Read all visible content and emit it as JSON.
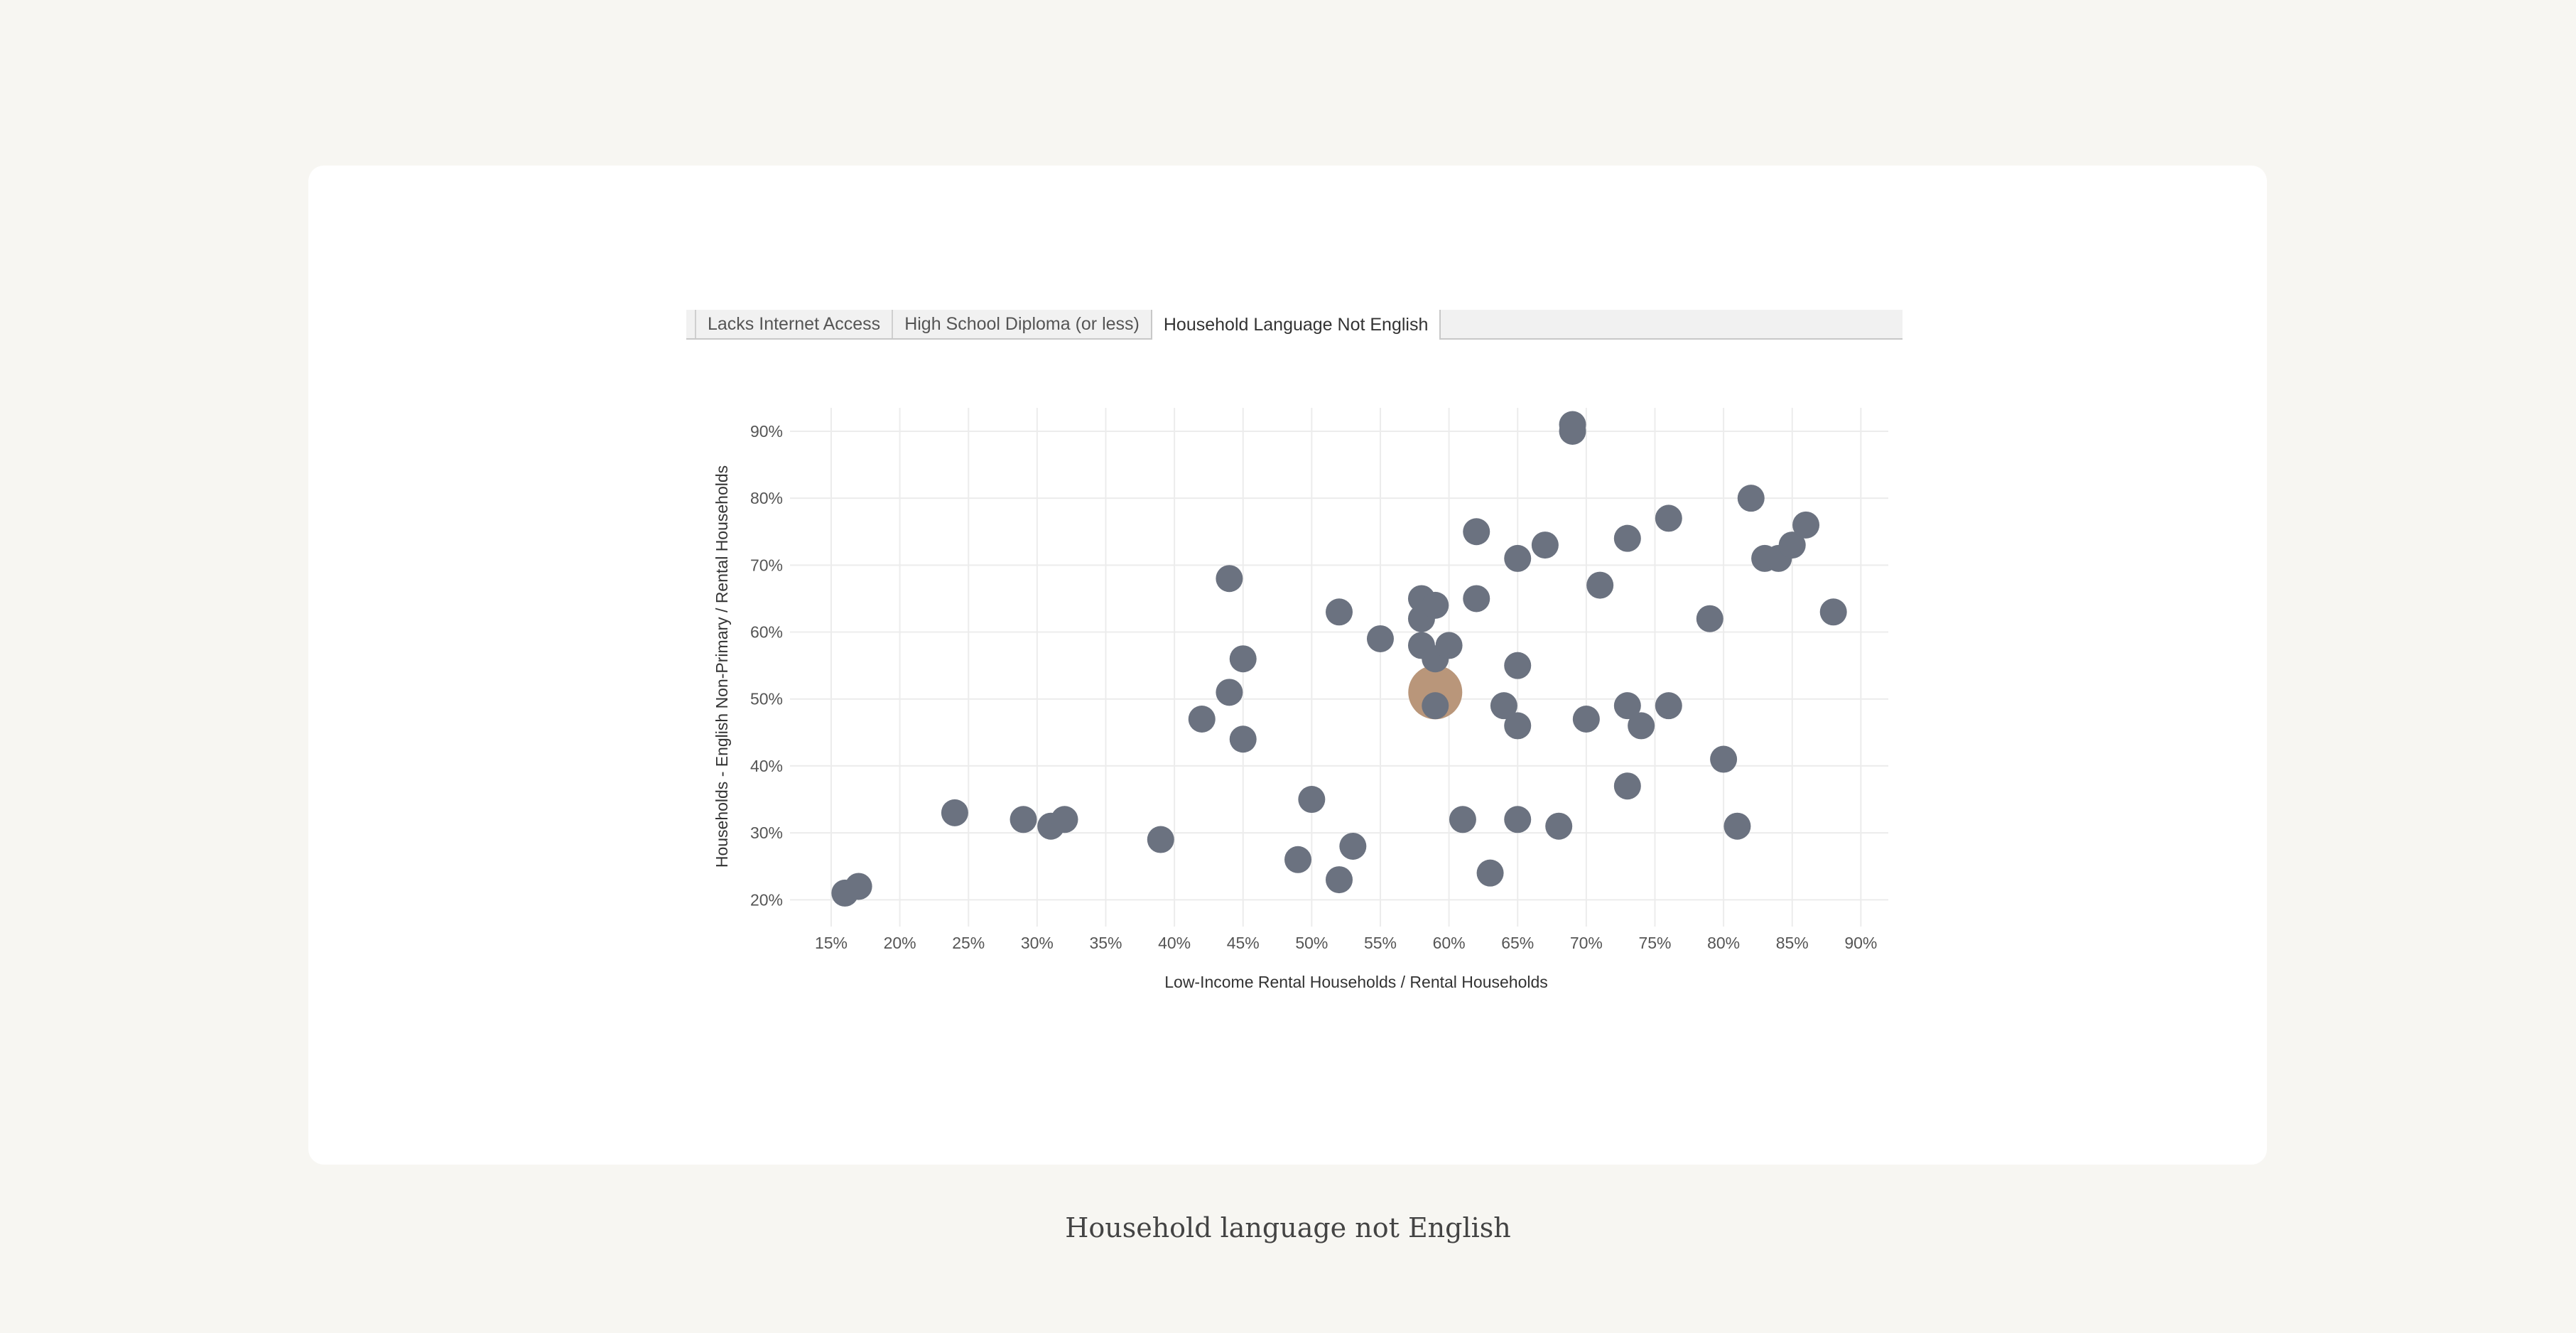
{
  "tabs": [
    {
      "label": "Lacks Internet Access",
      "active": false
    },
    {
      "label": "High School Diploma (or less)",
      "active": false
    },
    {
      "label": "Household Language Not English",
      "active": true
    }
  ],
  "caption": "Household language not English",
  "colors": {
    "point": "#6b7280",
    "highlight": "#b9967a",
    "grid": "#ececec",
    "tick_text": "#555555",
    "axis_label": "#333333"
  },
  "chart_data": {
    "type": "scatter",
    "title": "",
    "xlabel": "Low-Income Rental Households / Rental Households",
    "ylabel": "Households - English Non-Primary / Rental Households",
    "xlim": [
      12,
      92
    ],
    "ylim": [
      16,
      93.5
    ],
    "x_ticks": [
      15,
      20,
      25,
      30,
      35,
      40,
      45,
      50,
      55,
      60,
      65,
      70,
      75,
      80,
      85,
      90
    ],
    "x_tick_labels": [
      "15%",
      "20%",
      "25%",
      "30%",
      "35%",
      "40%",
      "45%",
      "50%",
      "55%",
      "60%",
      "65%",
      "70%",
      "75%",
      "80%",
      "85%",
      "90%"
    ],
    "y_ticks": [
      20,
      30,
      40,
      50,
      60,
      70,
      80,
      90
    ],
    "y_tick_labels": [
      "20%",
      "30%",
      "40%",
      "50%",
      "60%",
      "70%",
      "80%",
      "90%"
    ],
    "grid": true,
    "legend": "none",
    "points": [
      {
        "x": 16,
        "y": 21
      },
      {
        "x": 17,
        "y": 22
      },
      {
        "x": 24,
        "y": 33
      },
      {
        "x": 29,
        "y": 32
      },
      {
        "x": 31,
        "y": 31
      },
      {
        "x": 32,
        "y": 32
      },
      {
        "x": 39,
        "y": 29
      },
      {
        "x": 42,
        "y": 47
      },
      {
        "x": 44,
        "y": 68
      },
      {
        "x": 44,
        "y": 51
      },
      {
        "x": 45,
        "y": 56
      },
      {
        "x": 45,
        "y": 44
      },
      {
        "x": 49,
        "y": 26
      },
      {
        "x": 50,
        "y": 35
      },
      {
        "x": 52,
        "y": 63
      },
      {
        "x": 52,
        "y": 23
      },
      {
        "x": 53,
        "y": 28
      },
      {
        "x": 55,
        "y": 59
      },
      {
        "x": 58,
        "y": 65
      },
      {
        "x": 58,
        "y": 62
      },
      {
        "x": 58,
        "y": 58
      },
      {
        "x": 59,
        "y": 64
      },
      {
        "x": 59,
        "y": 56
      },
      {
        "x": 59,
        "y": 49
      },
      {
        "x": 60,
        "y": 58
      },
      {
        "x": 61,
        "y": 32
      },
      {
        "x": 62,
        "y": 75
      },
      {
        "x": 62,
        "y": 65
      },
      {
        "x": 63,
        "y": 24
      },
      {
        "x": 64,
        "y": 49
      },
      {
        "x": 65,
        "y": 71
      },
      {
        "x": 65,
        "y": 55
      },
      {
        "x": 65,
        "y": 46
      },
      {
        "x": 65,
        "y": 32
      },
      {
        "x": 67,
        "y": 73
      },
      {
        "x": 68,
        "y": 31
      },
      {
        "x": 69,
        "y": 91
      },
      {
        "x": 69,
        "y": 90
      },
      {
        "x": 70,
        "y": 47
      },
      {
        "x": 71,
        "y": 67
      },
      {
        "x": 73,
        "y": 74
      },
      {
        "x": 73,
        "y": 49
      },
      {
        "x": 73,
        "y": 37
      },
      {
        "x": 74,
        "y": 46
      },
      {
        "x": 76,
        "y": 77
      },
      {
        "x": 76,
        "y": 49
      },
      {
        "x": 79,
        "y": 62
      },
      {
        "x": 80,
        "y": 41
      },
      {
        "x": 81,
        "y": 31
      },
      {
        "x": 82,
        "y": 80
      },
      {
        "x": 83,
        "y": 71
      },
      {
        "x": 84,
        "y": 71
      },
      {
        "x": 85,
        "y": 73
      },
      {
        "x": 86,
        "y": 76
      },
      {
        "x": 88,
        "y": 63
      }
    ],
    "highlight_point": {
      "x": 59,
      "y": 51
    }
  }
}
